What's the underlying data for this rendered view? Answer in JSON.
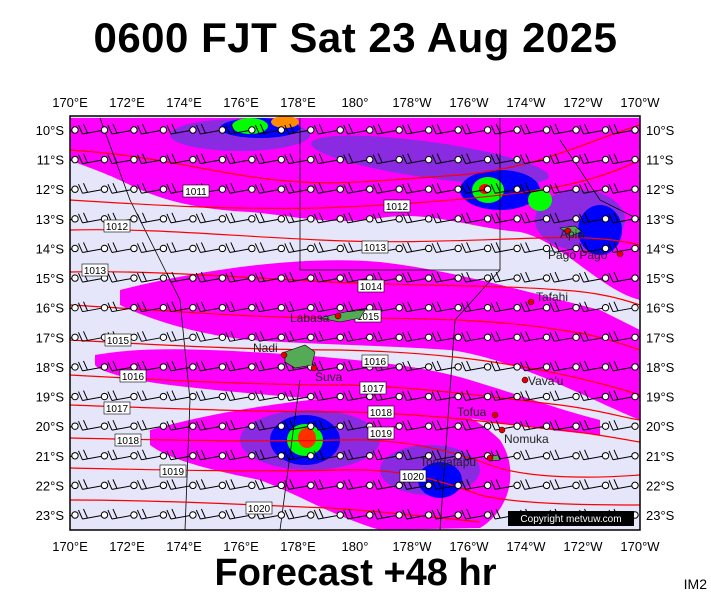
{
  "header": {
    "title": "0600 FJT Sat 23 Aug 2025"
  },
  "footer": {
    "forecast": "Forecast +48 hr",
    "image_code": "IM2"
  },
  "map": {
    "lon_labels": [
      "170°E",
      "172°E",
      "174°E",
      "176°E",
      "178°E",
      "180°",
      "178°W",
      "176°W",
      "174°W",
      "172°W",
      "170°W"
    ],
    "lat_labels": [
      "10°S",
      "11°S",
      "12°S",
      "13°S",
      "14°S",
      "15°S",
      "16°S",
      "17°S",
      "18°S",
      "19°S",
      "20°S",
      "21°S",
      "22°S",
      "23°S"
    ],
    "places": [
      {
        "name": "Apia",
        "dot": true
      },
      {
        "name": "Pago Pago",
        "dot": true
      },
      {
        "name": "Tafahi",
        "dot": true
      },
      {
        "name": "Labasa",
        "dot": true
      },
      {
        "name": "Nadi",
        "dot": true
      },
      {
        "name": "Suva",
        "dot": true
      },
      {
        "name": "Vava'u",
        "dot": true
      },
      {
        "name": "Tofua",
        "dot": true
      },
      {
        "name": "Nomuka",
        "dot": true
      },
      {
        "name": "Tongatapu",
        "dot": true
      }
    ],
    "isobar_labels": [
      "1011",
      "1012",
      "1012",
      "1013",
      "1013",
      "1014",
      "1015",
      "1015",
      "1016",
      "1016",
      "1017",
      "1017",
      "1018",
      "1018",
      "1019",
      "1019",
      "1020",
      "1020"
    ],
    "copyright": "Copyright metvuw.com",
    "colors": {
      "background": "#e6e6fa",
      "isobar": "#ff0000",
      "rain_light": "#ff00ff",
      "rain_medium": "#8a2be2",
      "rain_heavy": "#0000ff",
      "rain_peak": "#00ff00",
      "rain_extreme": "#ff8c00"
    }
  }
}
